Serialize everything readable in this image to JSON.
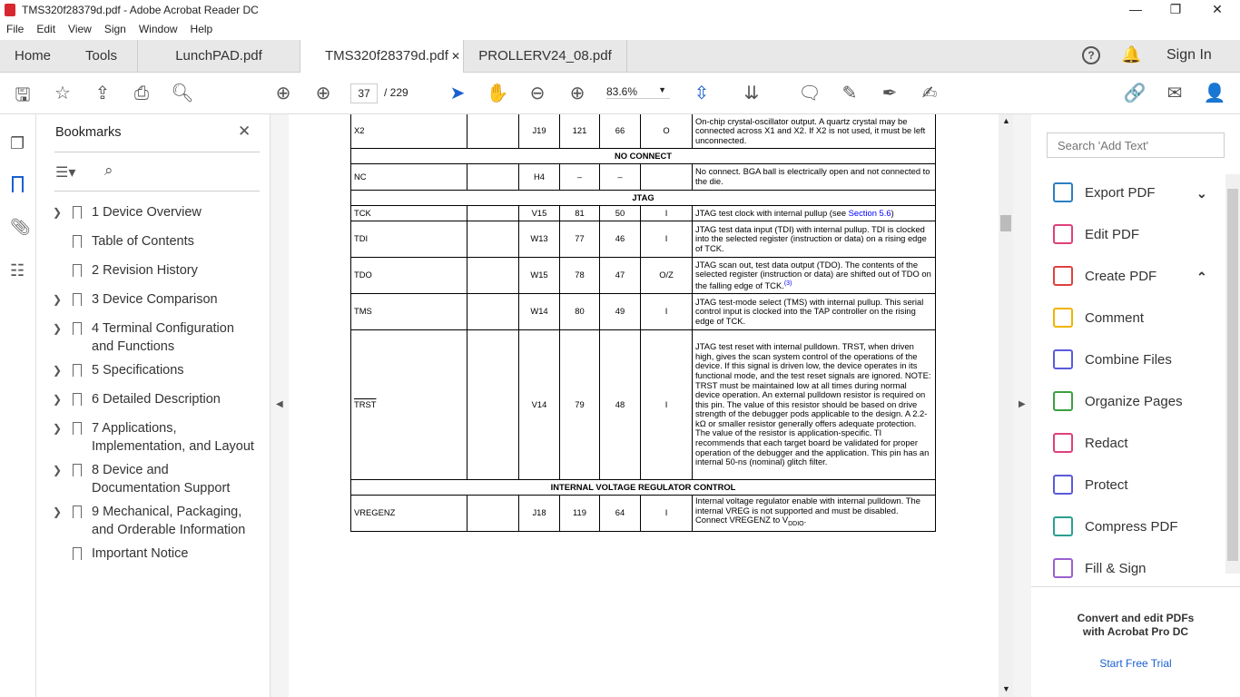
{
  "window": {
    "title": "TMS320f28379d.pdf - Adobe Acrobat Reader DC",
    "min": "—",
    "max": "❐",
    "close": "✕"
  },
  "menu": [
    "File",
    "Edit",
    "View",
    "Sign",
    "Window",
    "Help"
  ],
  "tabs": {
    "home": "Home",
    "tools": "Tools",
    "docs": [
      {
        "label": "LunchPAD.pdf"
      },
      {
        "label": "TMS320f28379d.pdf",
        "close": "✕"
      },
      {
        "label": "PROLLERV24_08.pdf"
      }
    ],
    "sign_in": "Sign In"
  },
  "toolbar": {
    "page": "37",
    "total": "/ 229",
    "zoom": "83.6%"
  },
  "bookmarks": {
    "title": "Bookmarks",
    "close": "✕",
    "items": [
      {
        "label": "1  Device Overview",
        "exp": true
      },
      {
        "label": "Table of Contents",
        "exp": false
      },
      {
        "label": "2  Revision History",
        "exp": false
      },
      {
        "label": "3  Device Comparison",
        "exp": true
      },
      {
        "label": "4  Terminal Configuration",
        "label2": "and Functions",
        "exp": true
      },
      {
        "label": "5  Specifications",
        "exp": true
      },
      {
        "label": "6  Detailed Description",
        "exp": true
      },
      {
        "label": "7  Applications,",
        "label2": "Implementation, and Layout",
        "exp": true
      },
      {
        "label": "8  Device and",
        "label2": "Documentation Support",
        "exp": true
      },
      {
        "label": "9  Mechanical, Packaging,",
        "label2": "and Orderable Information",
        "exp": true
      },
      {
        "label": "Important Notice",
        "exp": false
      }
    ]
  },
  "table": {
    "rows": [
      {
        "type": "row",
        "h": 38,
        "cells": [
          "X2",
          "",
          "J19",
          "121",
          "66",
          "O",
          "On-chip crystal-oscillator output. A quartz crystal may be connected across X1 and X2. If X2 is not used, it must be left unconnected."
        ]
      },
      {
        "type": "sec",
        "h": 17,
        "text": "NO CONNECT"
      },
      {
        "type": "row",
        "h": 29,
        "cells": [
          "NC",
          "",
          "H4",
          "–",
          "–",
          "",
          "No connect. BGA ball is electrically open and not connected to the die."
        ]
      },
      {
        "type": "sec",
        "h": 17,
        "text": "JTAG"
      },
      {
        "type": "row",
        "h": 17,
        "cells": [
          "TCK",
          "",
          "V15",
          "81",
          "50",
          "I",
          "JTAG test clock with internal pullup (see "
        ],
        "link": "Section 5.6",
        "after": ")"
      },
      {
        "type": "row",
        "h": 40,
        "cells": [
          "TDI",
          "",
          "W13",
          "77",
          "46",
          "I",
          "JTAG test data input (TDI) with internal pullup. TDI is clocked into the selected register (instruction or data) on a rising edge of TCK."
        ]
      },
      {
        "type": "row",
        "h": 40,
        "cells": [
          "TDO",
          "",
          "W15",
          "78",
          "47",
          "O/Z",
          "JTAG scan out, test data output (TDO). The contents of the selected register (instruction or data) are shifted out of TDO on the falling edge of TCK."
        ],
        "sup": "(3)"
      },
      {
        "type": "row",
        "h": 40,
        "cells": [
          "TMS",
          "",
          "W14",
          "80",
          "49",
          "I",
          "JTAG test-mode select (TMS) with internal pullup. This serial control input is clocked into the TAP controller on the rising edge of TCK."
        ]
      },
      {
        "type": "row",
        "h": 165,
        "cells": [
          "TRST",
          "",
          "V14",
          "79",
          "48",
          "I",
          "JTAG test reset with internal pulldown. TRST, when driven high, gives the scan system control of the operations of the device. If this signal is driven low, the device operates in its functional mode, and the test reset signals are ignored. NOTE: TRST must be maintained low at all times during normal device operation. An external pulldown resistor is required on this pin. The value of this resistor should be based on drive strength of the debugger pods applicable to the design. A 2.2-kΩ or smaller resistor generally offers adequate protection. The value of the resistor is application-specific. TI recommends that each target board be validated for proper operation of the debugger and the application. This pin has an internal 50-ns (nominal) glitch filter."
        ],
        "overline": true
      },
      {
        "type": "sec",
        "h": 17,
        "text": "INTERNAL VOLTAGE REGULATOR CONTROL"
      },
      {
        "type": "row",
        "h": 40,
        "cells": [
          "VREGENZ",
          "",
          "J18",
          "119",
          "64",
          "I",
          "Internal voltage regulator enable with internal pulldown. The internal VREG is not supported and must be disabled. Connect VREGENZ to V"
        ],
        "sub": "DDIO",
        "after": "."
      }
    ]
  },
  "right_panel": {
    "search_placeholder": "Search 'Add Text'",
    "tools": [
      {
        "label": "Export PDF",
        "color": "#2d7fc1",
        "chev": "⌄"
      },
      {
        "label": "Edit PDF",
        "color": "#e0407a"
      },
      {
        "label": "Create PDF",
        "color": "#e04040",
        "chev": "⌃"
      },
      {
        "label": "Comment",
        "color": "#f0b400"
      },
      {
        "label": "Combine Files",
        "color": "#5a5adb"
      },
      {
        "label": "Organize Pages",
        "color": "#3aa040"
      },
      {
        "label": "Redact",
        "color": "#e0407a"
      },
      {
        "label": "Protect",
        "color": "#5a5adb"
      },
      {
        "label": "Compress PDF",
        "color": "#2aa090"
      },
      {
        "label": "Fill & Sign",
        "color": "#9a60d0"
      }
    ],
    "promo1": "Convert and edit PDFs",
    "promo2": "with Acrobat Pro DC",
    "trial": "Start Free Trial"
  }
}
